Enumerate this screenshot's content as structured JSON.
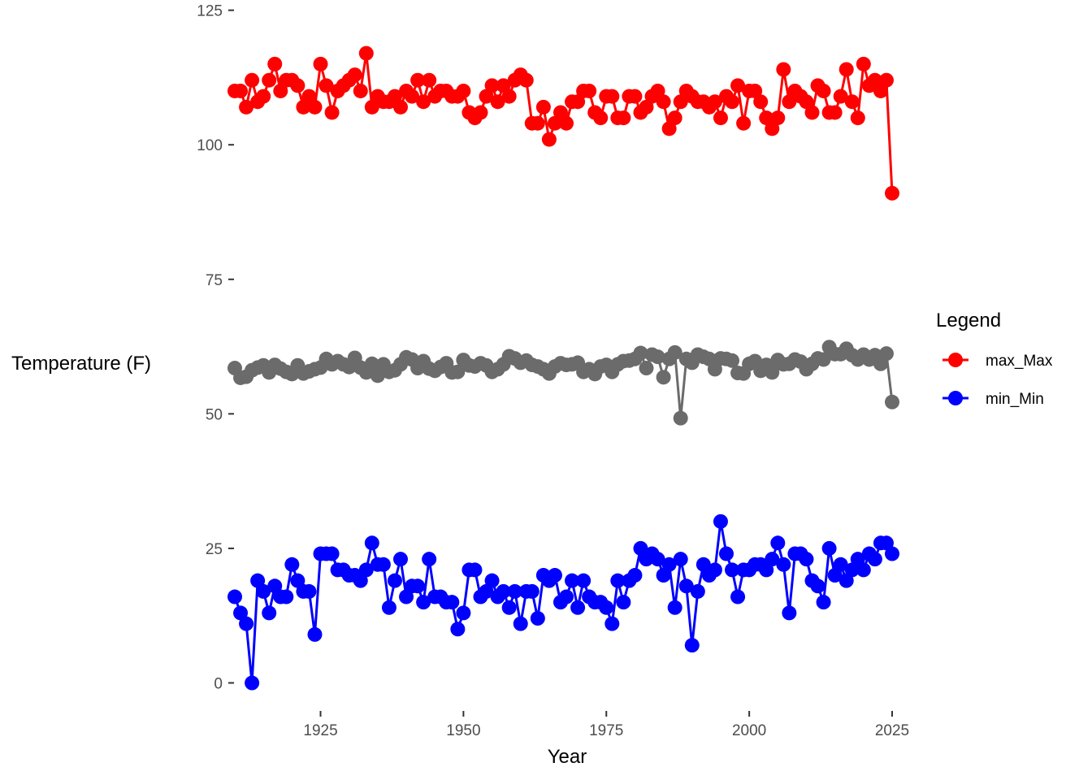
{
  "chart_data": {
    "type": "line",
    "title": "",
    "xlabel": "Year",
    "ylabel": "Temperature (F)",
    "xlim": [
      1910,
      2025
    ],
    "ylim": [
      -4,
      126
    ],
    "x_ticks": [
      1925,
      1950,
      1975,
      2000,
      2025
    ],
    "y_ticks": [
      0,
      25,
      50,
      75,
      100,
      125
    ],
    "grid": false,
    "legend": {
      "title": "Legend",
      "position": "right",
      "entries": [
        {
          "name": "max_Max",
          "color": "#ff0000"
        },
        {
          "name": "min_Min",
          "color": "#0000ff"
        }
      ]
    },
    "x": [
      1910,
      1911,
      1912,
      1913,
      1914,
      1915,
      1916,
      1917,
      1918,
      1919,
      1920,
      1921,
      1922,
      1923,
      1924,
      1925,
      1926,
      1927,
      1928,
      1929,
      1930,
      1931,
      1932,
      1933,
      1934,
      1935,
      1936,
      1937,
      1938,
      1939,
      1940,
      1941,
      1942,
      1943,
      1944,
      1945,
      1946,
      1947,
      1948,
      1949,
      1950,
      1951,
      1952,
      1953,
      1954,
      1955,
      1956,
      1957,
      1958,
      1959,
      1960,
      1961,
      1962,
      1963,
      1964,
      1965,
      1966,
      1967,
      1968,
      1969,
      1970,
      1971,
      1972,
      1973,
      1974,
      1975,
      1976,
      1977,
      1978,
      1979,
      1980,
      1981,
      1982,
      1983,
      1984,
      1985,
      1986,
      1987,
      1988,
      1989,
      1990,
      1991,
      1992,
      1993,
      1994,
      1995,
      1996,
      1997,
      1998,
      1999,
      2000,
      2001,
      2002,
      2003,
      2004,
      2005,
      2006,
      2007,
      2008,
      2009,
      2010,
      2011,
      2012,
      2013,
      2014,
      2015,
      2016,
      2017,
      2018,
      2019,
      2020,
      2021,
      2022,
      2023,
      2024,
      2025
    ],
    "series": [
      {
        "name": "max_Max",
        "color": "#ff0000",
        "values": [
          110,
          110,
          107,
          112,
          108,
          109,
          112,
          115,
          110,
          112,
          112,
          111,
          107,
          109,
          107,
          115,
          111,
          106,
          110,
          111,
          112,
          113,
          110,
          117,
          107,
          109,
          108,
          108,
          109,
          107,
          110,
          109,
          112,
          108,
          112,
          109,
          110,
          110,
          109,
          109,
          110,
          106,
          105,
          106,
          109,
          111,
          108,
          111,
          109,
          112,
          113,
          112,
          104,
          104,
          107,
          101,
          104,
          106,
          104,
          108,
          108,
          110,
          110,
          106,
          105,
          109,
          109,
          105,
          105,
          109,
          109,
          106,
          107,
          109,
          110,
          108,
          103,
          105,
          108,
          110,
          109,
          108,
          108,
          107,
          108,
          105,
          109,
          108,
          111,
          104,
          110,
          110,
          108,
          105,
          103,
          105,
          114,
          108,
          110,
          109,
          108,
          106,
          111,
          110,
          106,
          106,
          109,
          114,
          108,
          105,
          115,
          111,
          112,
          110,
          112,
          91
        ]
      },
      {
        "name": "",
        "color": "#6b6b6b",
        "values": [
          58.5,
          56.7,
          56.9,
          58.1,
          58.6,
          59.0,
          57.7,
          59.1,
          58.4,
          57.8,
          57.4,
          59.0,
          57.5,
          57.9,
          58.3,
          58.6,
          60.2,
          59.2,
          59.8,
          59.2,
          58.7,
          60.4,
          58.6,
          57.7,
          59.3,
          57.1,
          59.2,
          57.8,
          58.1,
          59.2,
          60.5,
          60.1,
          58.5,
          59.8,
          58.4,
          58.0,
          58.7,
          59.4,
          57.7,
          57.8,
          60.0,
          59.0,
          58.8,
          59.4,
          59.0,
          57.8,
          58.3,
          59.2,
          60.7,
          60.3,
          59.5,
          59.9,
          59.1,
          58.8,
          58.3,
          57.5,
          58.8,
          59.4,
          59.1,
          59.2,
          59.5,
          57.8,
          58.3,
          57.4,
          58.8,
          59.1,
          57.8,
          59.2,
          59.8,
          59.9,
          60.2,
          61.3,
          58.5,
          61.0,
          60.6,
          56.8,
          60.2,
          61.4,
          49.2,
          60.2,
          59.5,
          61.0,
          60.6,
          60.2,
          58.3,
          60.3,
          60.2,
          59.9,
          57.6,
          57.5,
          59.3,
          59.8,
          58.0,
          59.1,
          57.7,
          60.0,
          59.2,
          59.3,
          60.1,
          59.7,
          58.3,
          59.3,
          60.3,
          60.1,
          62.4,
          61.1,
          61.1,
          62.1,
          60.9,
          60.1,
          61.0,
          60.1,
          60.9,
          59.3,
          61.2,
          52.2
        ]
      },
      {
        "name": "min_Min",
        "color": "#0000ff",
        "values": [
          16,
          13,
          11,
          0,
          19,
          17,
          13,
          18,
          16,
          16,
          22,
          19,
          17,
          17,
          9,
          24,
          24,
          24,
          21,
          21,
          20,
          20,
          19,
          21,
          26,
          22,
          22,
          14,
          19,
          23,
          16,
          18,
          18,
          15,
          23,
          16,
          16,
          15,
          15,
          10,
          13,
          21,
          21,
          16,
          17,
          19,
          16,
          17,
          14,
          17,
          11,
          17,
          17,
          12,
          20,
          19,
          20,
          15,
          16,
          19,
          14,
          19,
          16,
          15,
          15,
          14,
          11,
          19,
          15,
          19,
          20,
          25,
          23,
          24,
          23,
          20,
          22,
          14,
          23,
          18,
          7,
          17,
          22,
          20,
          21,
          30,
          24,
          21,
          16,
          21,
          21,
          22,
          22,
          21,
          23,
          26,
          22,
          13,
          24,
          24,
          23,
          19,
          18,
          15,
          25,
          20,
          22,
          19,
          21,
          23,
          21,
          24,
          23,
          26,
          26,
          24
        ]
      }
    ]
  }
}
